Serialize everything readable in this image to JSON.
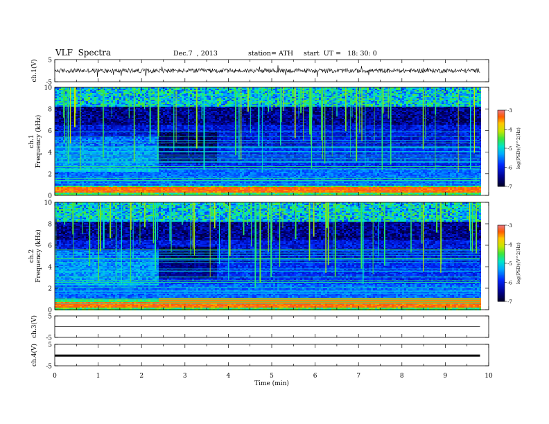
{
  "header": {
    "title": "VLF  Spectra",
    "date": "Dec.7  , 2013",
    "station": "station= ATH",
    "start": "start  UT =   18: 30: 0"
  },
  "chart_data": [
    {
      "type": "line",
      "panel": "ch1-waveform",
      "ylabel": "ch.1(V)",
      "ylim": [
        -5,
        5
      ],
      "yticks": [
        -5,
        5
      ],
      "xlim": [
        0,
        10
      ],
      "series": [
        {
          "style": "noisy",
          "baseline": 0,
          "amplitude": 1.2
        }
      ]
    },
    {
      "type": "heatmap",
      "panel": "ch1-spectrogram",
      "ylabel": "ch.1",
      "ylabel2": "Frequency  (kHz)",
      "ylim": [
        0,
        10
      ],
      "yticks": [
        0,
        2,
        4,
        6,
        8,
        10
      ],
      "xlim": [
        0,
        9.8
      ],
      "colorbar": {
        "label": "log(PSD)(V^2/Hz)",
        "ticks": [
          -7,
          -6,
          -5,
          -4,
          -3
        ],
        "range": [
          -7,
          -3
        ]
      }
    },
    {
      "type": "heatmap",
      "panel": "ch2-spectrogram",
      "ylabel": "ch.2",
      "ylabel2": "Frequency  (kHz)",
      "ylim": [
        0,
        10
      ],
      "yticks": [
        0,
        2,
        4,
        6,
        8,
        10
      ],
      "xlim": [
        0,
        9.8
      ],
      "colorbar": {
        "label": "log(PSD)(V^2/Hz)",
        "ticks": [
          -7,
          -6,
          -5,
          -4,
          -3
        ],
        "range": [
          -7,
          -3
        ]
      }
    },
    {
      "type": "line",
      "panel": "ch3-waveform",
      "ylabel": "ch.3(V)",
      "ylim": [
        -5,
        5
      ],
      "yticks": [
        -5,
        5
      ],
      "xlim": [
        0,
        10
      ],
      "series": [
        {
          "style": "flat",
          "baseline": 0,
          "amplitude": 0.05
        }
      ]
    },
    {
      "type": "line",
      "panel": "ch4-waveform",
      "ylabel": "ch.4(V)",
      "ylim": [
        -5,
        5
      ],
      "yticks": [
        -5,
        5
      ],
      "xlim": [
        0,
        10
      ],
      "xlabel": "Time  (min)",
      "xticks": [
        0,
        1,
        2,
        3,
        4,
        5,
        6,
        7,
        8,
        9,
        10
      ],
      "series": [
        {
          "style": "thick",
          "baseline": 0,
          "amplitude": 0.25
        }
      ]
    }
  ]
}
